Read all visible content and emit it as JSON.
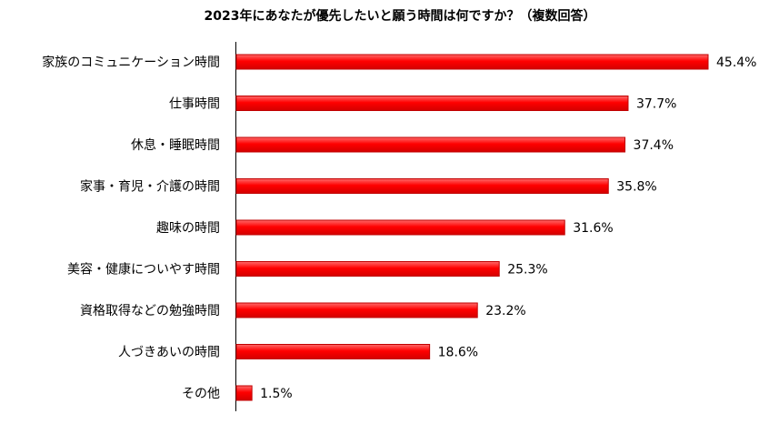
{
  "chart_data": {
    "type": "bar",
    "orientation": "horizontal",
    "title": "2023年にあなたが優先したいと願う時間は何ですか？（複数回答）",
    "categories": [
      "家族のコミュニケーション時間",
      "仕事時間",
      "休息・睡眠時間",
      "家事・育児・介護の時間",
      "趣味の時間",
      "美容・健康についやす時間",
      "資格取得などの勉強時間",
      "人づきあいの時間",
      "その他"
    ],
    "values": [
      45.4,
      37.7,
      37.4,
      35.8,
      31.6,
      25.3,
      23.2,
      18.6,
      1.5
    ],
    "value_labels": [
      "45.4%",
      "37.7%",
      "37.4%",
      "35.8%",
      "31.6%",
      "25.3%",
      "23.2%",
      "18.6%",
      "1.5%"
    ],
    "unit": "%",
    "xlim": [
      0,
      45.4
    ],
    "grid": false,
    "legend": "none",
    "bar_color": "#ff0000",
    "bar_edge_color": "#c00000"
  }
}
